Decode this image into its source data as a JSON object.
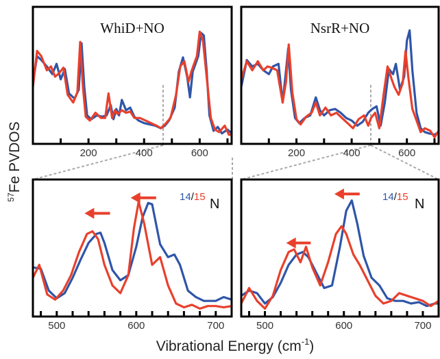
{
  "colors": {
    "n14": "#2f55a8",
    "n15": "#e8402c",
    "frame": "#000000",
    "zoom": "#aaaaaa"
  },
  "axis_titles": {
    "y_prefix": "57",
    "y_main": "Fe PVDOS",
    "x_main": "Vibrational Energy (cm",
    "x_exp": "-1",
    "x_close": ")"
  },
  "isotope_label": {
    "a": "14",
    "slash": "/",
    "b": "15",
    "n": "N"
  },
  "chart_data": [
    {
      "id": "whid-full",
      "type": "line",
      "title": "WhiD+NO",
      "xlim": [
        0,
        715
      ],
      "ylim": [
        0,
        1
      ],
      "xticks": [
        0,
        100,
        200,
        300,
        400,
        500,
        600,
        700
      ],
      "tick_labels": [
        "200",
        "400",
        "600"
      ],
      "series": [
        {
          "color": "n14",
          "x": [
            0,
            15,
            30,
            50,
            70,
            85,
            100,
            115,
            130,
            150,
            165,
            175,
            185,
            195,
            210,
            230,
            250,
            265,
            280,
            290,
            300,
            310,
            320,
            335,
            350,
            365,
            380,
            400,
            420,
            440,
            460,
            475,
            490,
            510,
            525,
            540,
            555,
            565,
            575,
            585,
            595,
            605,
            615,
            625,
            635,
            650,
            665,
            680,
            700,
            715
          ],
          "y": [
            0.45,
            0.66,
            0.63,
            0.58,
            0.52,
            0.6,
            0.48,
            0.56,
            0.37,
            0.33,
            0.4,
            0.76,
            0.42,
            0.2,
            0.17,
            0.2,
            0.19,
            0.2,
            0.28,
            0.17,
            0.25,
            0.2,
            0.32,
            0.24,
            0.26,
            0.19,
            0.16,
            0.14,
            0.13,
            0.12,
            0.1,
            0.12,
            0.16,
            0.26,
            0.54,
            0.65,
            0.5,
            0.34,
            0.54,
            0.6,
            0.66,
            0.84,
            0.82,
            0.55,
            0.2,
            0.08,
            0.11,
            0.06,
            0.09,
            0.06
          ]
        },
        {
          "color": "n15",
          "x": [
            0,
            15,
            30,
            50,
            65,
            80,
            95,
            110,
            125,
            145,
            160,
            170,
            180,
            190,
            205,
            225,
            245,
            260,
            272,
            285,
            295,
            305,
            320,
            335,
            350,
            365,
            385,
            405,
            425,
            445,
            460,
            475,
            495,
            515,
            530,
            545,
            560,
            570,
            580,
            590,
            600,
            612,
            625,
            640,
            655,
            670,
            690,
            705,
            715
          ],
          "y": [
            0.42,
            0.7,
            0.66,
            0.55,
            0.58,
            0.5,
            0.53,
            0.57,
            0.36,
            0.3,
            0.38,
            0.77,
            0.42,
            0.19,
            0.16,
            0.22,
            0.18,
            0.18,
            0.37,
            0.18,
            0.24,
            0.21,
            0.24,
            0.22,
            0.23,
            0.18,
            0.18,
            0.16,
            0.14,
            0.12,
            0.1,
            0.13,
            0.18,
            0.36,
            0.58,
            0.62,
            0.46,
            0.54,
            0.6,
            0.66,
            0.85,
            0.78,
            0.5,
            0.18,
            0.09,
            0.07,
            0.12,
            0.05,
            0.05
          ]
        }
      ]
    },
    {
      "id": "nsrr-full",
      "type": "line",
      "title": "NsrR+NO",
      "xlim": [
        0,
        715
      ],
      "ylim": [
        0,
        1
      ],
      "xticks": [
        0,
        100,
        200,
        300,
        400,
        500,
        600,
        700
      ],
      "tick_labels": [
        "200",
        "400",
        "600"
      ],
      "series": [
        {
          "color": "n14",
          "x": [
            0,
            20,
            40,
            60,
            80,
            100,
            115,
            135,
            150,
            160,
            170,
            180,
            195,
            210,
            230,
            250,
            270,
            285,
            300,
            320,
            340,
            360,
            380,
            400,
            420,
            440,
            460,
            475,
            490,
            505,
            520,
            535,
            550,
            560,
            575,
            590,
            600,
            610,
            620,
            635,
            650,
            665,
            680,
            700,
            715
          ],
          "y": [
            0.42,
            0.63,
            0.58,
            0.6,
            0.55,
            0.52,
            0.58,
            0.6,
            0.3,
            0.5,
            0.72,
            0.4,
            0.18,
            0.14,
            0.18,
            0.2,
            0.34,
            0.24,
            0.2,
            0.24,
            0.25,
            0.22,
            0.18,
            0.16,
            0.12,
            0.15,
            0.22,
            0.25,
            0.27,
            0.12,
            0.3,
            0.56,
            0.52,
            0.6,
            0.4,
            0.5,
            0.78,
            0.86,
            0.55,
            0.22,
            0.1,
            0.07,
            0.06,
            0.05,
            0.07
          ]
        },
        {
          "color": "n15",
          "x": [
            0,
            20,
            40,
            60,
            80,
            95,
            110,
            130,
            150,
            162,
            172,
            185,
            200,
            215,
            235,
            255,
            270,
            285,
            305,
            325,
            345,
            365,
            385,
            405,
            425,
            445,
            460,
            470,
            485,
            500,
            515,
            530,
            545,
            555,
            570,
            585,
            595,
            605,
            620,
            635,
            650,
            665,
            685,
            700,
            715
          ],
          "y": [
            0.48,
            0.62,
            0.55,
            0.62,
            0.55,
            0.58,
            0.57,
            0.55,
            0.3,
            0.46,
            0.75,
            0.38,
            0.17,
            0.13,
            0.19,
            0.22,
            0.3,
            0.2,
            0.26,
            0.2,
            0.22,
            0.18,
            0.14,
            0.1,
            0.17,
            0.2,
            0.12,
            0.18,
            0.22,
            0.1,
            0.35,
            0.58,
            0.48,
            0.42,
            0.36,
            0.45,
            0.7,
            0.5,
            0.25,
            0.16,
            0.07,
            0.1,
            0.08,
            0.03,
            0.08
          ]
        }
      ]
    },
    {
      "id": "whid-zoom",
      "type": "line",
      "title": "",
      "xlim": [
        470,
        720
      ],
      "ylim": [
        0,
        1
      ],
      "xticks": [
        480,
        500,
        520,
        540,
        560,
        580,
        600,
        620,
        640,
        660,
        680,
        700,
        720
      ],
      "tick_labels": [
        "500",
        "600",
        "700"
      ],
      "arrows": [
        {
          "x_tip": 535,
          "x_tail": 567,
          "y": 0.78
        },
        {
          "x_tip": 593,
          "x_tail": 625,
          "y": 0.9
        }
      ],
      "series": [
        {
          "color": "n14",
          "x": [
            470,
            480,
            490,
            500,
            510,
            520,
            530,
            540,
            550,
            555,
            560,
            570,
            580,
            590,
            600,
            608,
            615,
            620,
            630,
            640,
            648,
            655,
            665,
            675,
            685,
            700,
            710,
            720
          ],
          "y": [
            0.36,
            0.35,
            0.18,
            0.12,
            0.16,
            0.28,
            0.42,
            0.55,
            0.62,
            0.63,
            0.55,
            0.34,
            0.26,
            0.3,
            0.52,
            0.75,
            0.86,
            0.85,
            0.54,
            0.44,
            0.46,
            0.38,
            0.18,
            0.13,
            0.1,
            0.1,
            0.13,
            0.11
          ]
        },
        {
          "color": "n15",
          "x": [
            470,
            478,
            488,
            498,
            508,
            518,
            528,
            538,
            545,
            552,
            560,
            570,
            580,
            590,
            597,
            603,
            610,
            620,
            630,
            640,
            650,
            660,
            670,
            680,
            690,
            700,
            710,
            720
          ],
          "y": [
            0.28,
            0.38,
            0.15,
            0.11,
            0.18,
            0.3,
            0.48,
            0.62,
            0.64,
            0.58,
            0.38,
            0.22,
            0.16,
            0.3,
            0.66,
            0.87,
            0.7,
            0.38,
            0.44,
            0.22,
            0.08,
            0.05,
            0.07,
            0.04,
            0.06,
            0.06,
            0.05,
            0.06
          ]
        }
      ]
    },
    {
      "id": "nsrr-zoom",
      "type": "line",
      "title": "",
      "xlim": [
        470,
        720
      ],
      "ylim": [
        0,
        1
      ],
      "xticks": [
        480,
        500,
        520,
        540,
        560,
        580,
        600,
        620,
        640,
        660,
        680,
        700,
        720
      ],
      "tick_labels": [
        "500",
        "600",
        "700"
      ],
      "arrows": [
        {
          "x_tip": 527,
          "x_tail": 558,
          "y": 0.55
        },
        {
          "x_tip": 588,
          "x_tail": 620,
          "y": 0.93
        }
      ],
      "series": [
        {
          "color": "n14",
          "x": [
            470,
            480,
            490,
            500,
            510,
            520,
            530,
            540,
            548,
            555,
            565,
            575,
            585,
            595,
            603,
            610,
            617,
            625,
            635,
            645,
            655,
            665,
            675,
            685,
            695,
            705,
            715,
            720
          ],
          "y": [
            0.14,
            0.18,
            0.16,
            0.08,
            0.13,
            0.24,
            0.38,
            0.46,
            0.48,
            0.44,
            0.32,
            0.2,
            0.22,
            0.52,
            0.8,
            0.88,
            0.7,
            0.45,
            0.28,
            0.22,
            0.12,
            0.1,
            0.1,
            0.08,
            0.09,
            0.06,
            0.08,
            0.08
          ]
        },
        {
          "color": "n15",
          "x": [
            470,
            480,
            490,
            500,
            510,
            520,
            530,
            537,
            545,
            552,
            560,
            570,
            580,
            590,
            597,
            603,
            612,
            620,
            630,
            640,
            650,
            660,
            670,
            680,
            690,
            700,
            710,
            720
          ],
          "y": [
            0.08,
            0.2,
            0.1,
            0.04,
            0.14,
            0.34,
            0.48,
            0.5,
            0.4,
            0.52,
            0.36,
            0.22,
            0.4,
            0.62,
            0.68,
            0.62,
            0.46,
            0.38,
            0.26,
            0.14,
            0.08,
            0.1,
            0.16,
            0.14,
            0.12,
            0.1,
            0.06,
            0.1
          ]
        }
      ]
    }
  ]
}
